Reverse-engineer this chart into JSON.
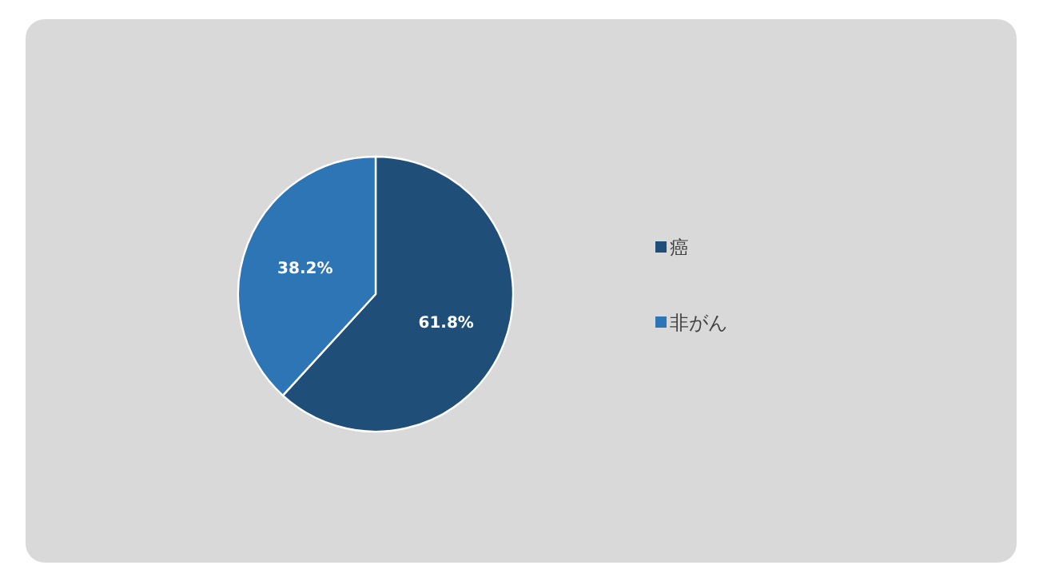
{
  "chart_data": {
    "type": "pie",
    "categories": [
      "癌",
      "非がん"
    ],
    "values": [
      61.8,
      38.2
    ],
    "colors": [
      "#1f4e79",
      "#2e75b6"
    ],
    "value_labels": [
      "61.8%",
      "38.2%"
    ],
    "legend": "right"
  }
}
